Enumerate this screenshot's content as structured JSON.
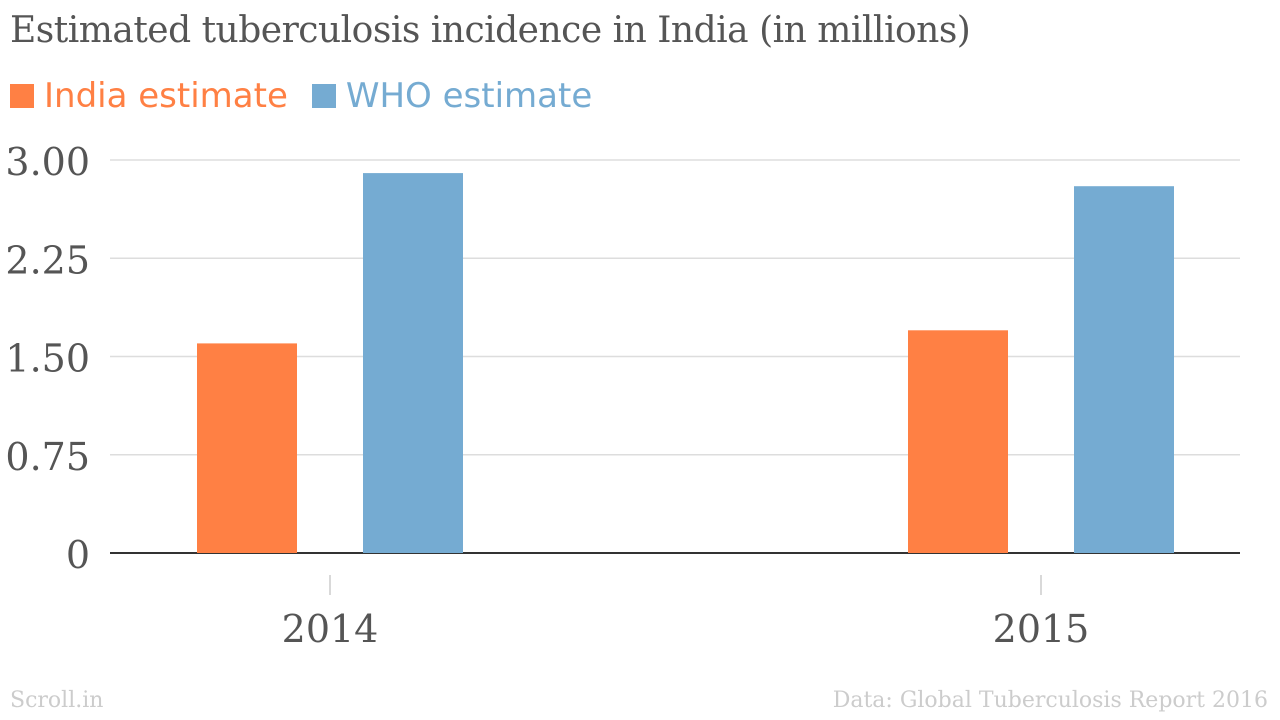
{
  "chart_data": {
    "type": "bar",
    "title": "Estimated tuberculosis incidence in India (in millions)",
    "categories": [
      "2014",
      "2015"
    ],
    "series": [
      {
        "name": "India estimate",
        "values": [
          1.6,
          1.7
        ],
        "color": "#ff8044"
      },
      {
        "name": "WHO estimate",
        "values": [
          2.9,
          2.8
        ],
        "color": "#75abd2"
      }
    ],
    "ylim": [
      0,
      3
    ],
    "yticks": [
      "0",
      "0.75",
      "1.50",
      "2.25",
      "3.00"
    ],
    "ytick_values": [
      0,
      0.75,
      1.5,
      2.25,
      3.0
    ],
    "grid": true,
    "legend_position": "top-left",
    "xlabel": "",
    "ylabel": ""
  },
  "footer": {
    "source_brand": "Scroll.in",
    "data_credit": "Data: Global Tuberculosis Report 2016"
  }
}
